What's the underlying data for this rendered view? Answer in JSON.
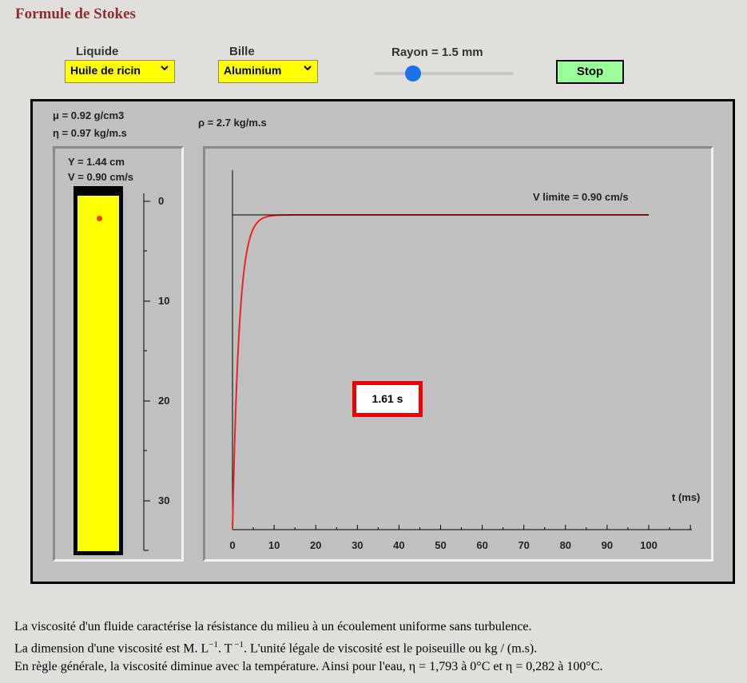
{
  "title": "Formule de Stokes",
  "controls": {
    "liquide_label": "Liquide",
    "liquide_value": "Huile de ricin",
    "bille_label": "Bille",
    "bille_value": "Aluminium",
    "rayon_label": "Rayon = 1.5 mm",
    "rayon_slider_fraction": 0.28,
    "stop_label": "Stop"
  },
  "info": {
    "mu": "μ = 0.92 g/cm3",
    "eta": "η = 0.97 kg/m.s",
    "rho": "ρ = 2.7 kg/m.s",
    "y": "Y = 1.44 cm",
    "v": "V = 0.90 cm/s"
  },
  "ball_position_cm": 1.44,
  "tube_scale": {
    "labels": [
      "0",
      "10",
      "20",
      "30"
    ]
  },
  "graph": {
    "v_limite_label": "V limite = 0.90 cm/s",
    "t_label": "t (ms)",
    "time_display": "1.61 s"
  },
  "chart_data": {
    "type": "line",
    "x": [
      0,
      1,
      2,
      3,
      4,
      5,
      6,
      7,
      8,
      9,
      10,
      15,
      20,
      30,
      50,
      100
    ],
    "xlabel": "t (ms)",
    "xticks": [
      "0",
      "10",
      "20",
      "30",
      "40",
      "50",
      "60",
      "70",
      "80",
      "90",
      "100"
    ],
    "xlim": [
      0,
      100
    ],
    "v_limit": 0.9,
    "series": [
      {
        "color": "#ee2222",
        "values": [
          0,
          0.49,
          0.71,
          0.82,
          0.86,
          0.88,
          0.89,
          0.895,
          0.898,
          0.899,
          0.9,
          0.9,
          0.9,
          0.9,
          0.9,
          0.9
        ]
      },
      {
        "color": "#000000",
        "values": [
          0.9,
          0.9,
          0.9,
          0.9,
          0.9,
          0.9,
          0.9,
          0.9,
          0.9,
          0.9,
          0.9,
          0.9,
          0.9,
          0.9,
          0.9,
          0.9
        ]
      }
    ]
  },
  "description": {
    "line1": "La viscosité d'un fluide caractérise la résistance du milieu à un écoulement uniforme sans turbulence.",
    "line2_a": "La dimension d'une viscosité est M. L",
    "line2_sup1": "−1",
    "line2_b": ". T",
    "line2_sup2": " −1",
    "line2_c": ". L'unité légale de viscosité est le poiseuille ou kg / (m.s).",
    "line3": "En règle générale, la viscosité diminue avec la température. Ainsi pour l'eau, η = 1,793 à 0°C et η = 0,282 à 100°C."
  }
}
